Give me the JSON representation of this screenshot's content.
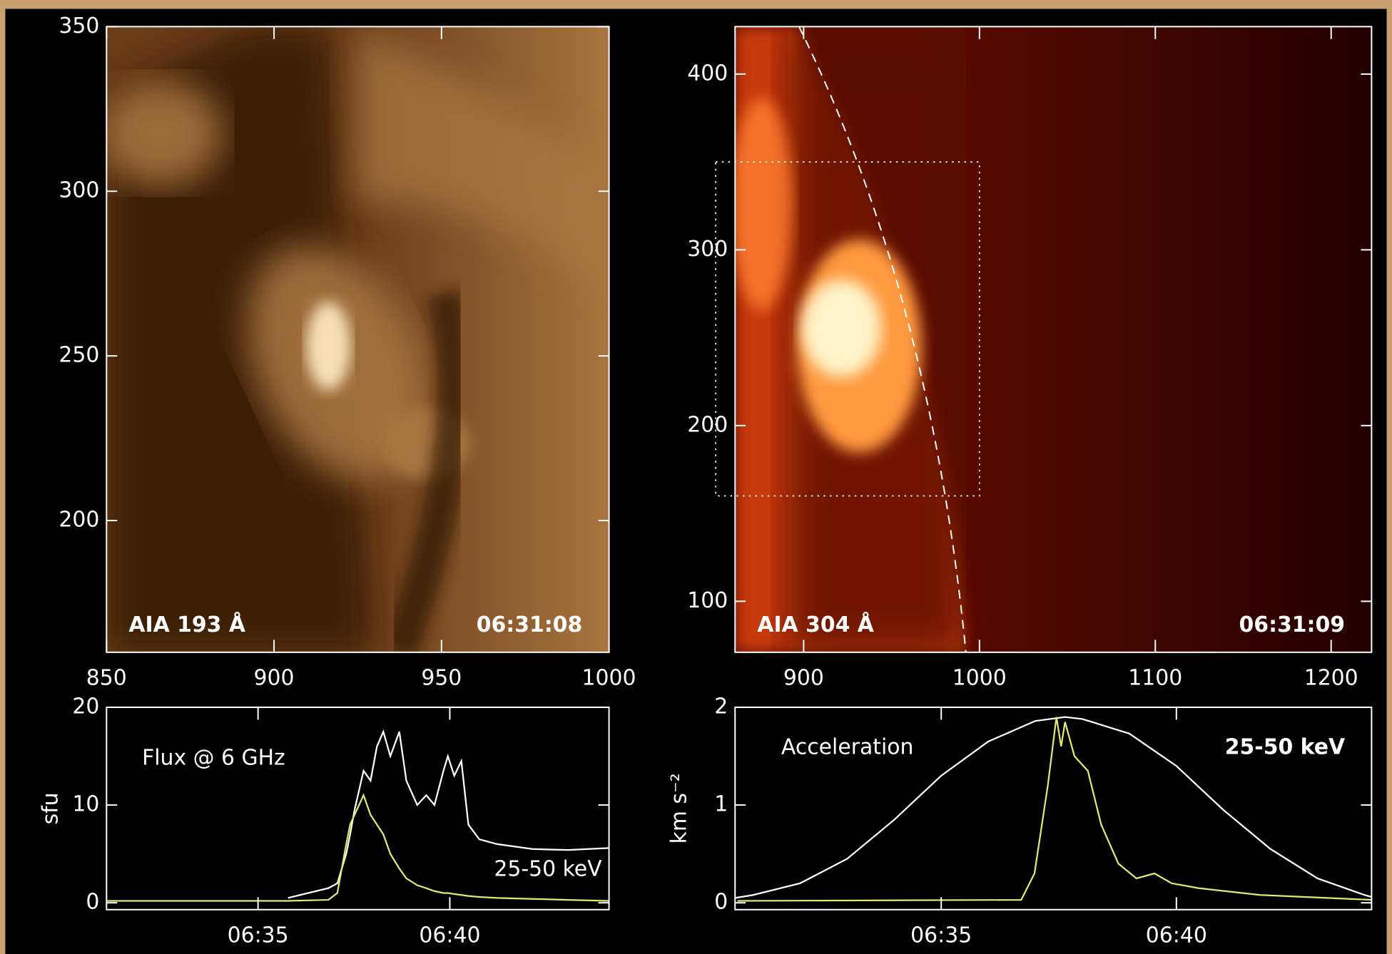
{
  "chart_data": [
    {
      "type": "image",
      "title": "AIA 193 Å",
      "time": "06:31:08",
      "colormap": [
        "#2e1606",
        "#6a3c18",
        "#a8743f",
        "#f6e0b8"
      ],
      "xlim": [
        850,
        1000
      ],
      "xticks": [
        850,
        900,
        950,
        1000
      ],
      "ylim": [
        160,
        350
      ],
      "yticks": [
        200,
        250,
        300,
        350
      ]
    },
    {
      "type": "image",
      "title": "AIA 304 Å",
      "time": "06:31:09",
      "colormap": [
        "#240000",
        "#5c0c02",
        "#d2400e",
        "#fff2c8"
      ],
      "xlim": [
        861,
        1223
      ],
      "xticks": [
        900,
        1000,
        1100,
        1200
      ],
      "ylim": [
        71,
        427
      ],
      "yticks": [
        100,
        200,
        300,
        400
      ]
    },
    {
      "type": "line",
      "ylabel": "sfu",
      "ylim": [
        -0.7,
        20
      ],
      "yticks": [
        0,
        10,
        20
      ],
      "xlim": [
        "06:31:03",
        "06:44:09"
      ],
      "xticks": [
        "06:35",
        "06:40"
      ],
      "series": [
        {
          "name": "Flux @ 6 GHz",
          "color": "#ffffff",
          "x": [
            "06:31:03",
            "06:35:47",
            "06:36:50",
            "06:37:04",
            "06:37:18",
            "06:37:24",
            "06:37:31",
            "06:37:45",
            "06:37:56",
            "06:38:06",
            "06:38:16",
            "06:38:27",
            "06:38:41",
            "06:38:52",
            "06:39:09",
            "06:39:23",
            "06:39:36",
            "06:39:50",
            "06:39:57",
            "06:40:07",
            "06:40:18",
            "06:40:29",
            "06:40:46",
            "06:41:14",
            "06:42:09",
            "06:43:05",
            "06:44:09"
          ],
          "values": [
            null,
            0.5,
            1.5,
            2,
            5,
            7,
            9.5,
            13.5,
            12.5,
            16,
            17.5,
            15,
            17.5,
            12.5,
            10,
            11,
            10,
            13.5,
            15,
            13,
            14.5,
            8,
            6.5,
            6,
            5.5,
            5.4,
            5.6
          ]
        },
        {
          "name": "25-50 keV",
          "color": "#e0ea70",
          "x": [
            "06:31:03",
            "06:35:47",
            "06:36:50",
            "06:37:04",
            "06:37:18",
            "06:37:24",
            "06:37:31",
            "06:37:45",
            "06:37:56",
            "06:38:06",
            "06:38:16",
            "06:38:27",
            "06:38:41",
            "06:38:52",
            "06:39:09",
            "06:39:23",
            "06:39:36",
            "06:39:50",
            "06:39:57",
            "06:40:07",
            "06:40:18",
            "06:40:29",
            "06:40:46",
            "06:41:14",
            "06:42:09",
            "06:43:05",
            "06:44:09"
          ],
          "values": [
            0.2,
            0.2,
            0.3,
            1,
            6,
            8,
            9,
            11,
            9,
            8,
            7,
            5,
            3.5,
            2.5,
            1.8,
            1.5,
            1.2,
            1,
            1,
            0.9,
            0.8,
            0.7,
            0.6,
            0.5,
            0.4,
            0.3,
            0.2
          ]
        }
      ]
    },
    {
      "type": "line",
      "ylabel": "km s⁻²",
      "ylim": [
        -0.07,
        2
      ],
      "yticks": [
        0,
        1,
        2
      ],
      "xlim": [
        "06:30:37",
        "06:44:09"
      ],
      "xticks": [
        "06:35",
        "06:40"
      ],
      "series": [
        {
          "name": "Acceleration",
          "color": "#ffffff",
          "x": [
            "06:30:37",
            "06:31:00",
            "06:32:00",
            "06:33:00",
            "06:34:00",
            "06:35:00",
            "06:36:00",
            "06:37:00",
            "06:37:38",
            "06:38:00",
            "06:39:00",
            "06:40:00",
            "06:41:00",
            "06:42:00",
            "06:43:00",
            "06:44:00",
            "06:44:09"
          ],
          "values": [
            0.05,
            0.08,
            0.2,
            0.45,
            0.85,
            1.3,
            1.65,
            1.86,
            1.9,
            1.88,
            1.73,
            1.4,
            0.95,
            0.55,
            0.25,
            0.08,
            0.06
          ]
        },
        {
          "name": "25-50 keV",
          "color": "#e0ea70",
          "x": [
            "06:30:40",
            "06:36:42",
            "06:36:59",
            "06:37:16",
            "06:37:27",
            "06:37:33",
            "06:37:38",
            "06:37:50",
            "06:38:07",
            "06:38:24",
            "06:38:46",
            "06:39:09",
            "06:39:32",
            "06:39:54",
            "06:40:28",
            "06:41:47",
            "06:44:09"
          ],
          "values": [
            0.02,
            0.03,
            0.3,
            1.2,
            1.9,
            1.6,
            1.85,
            1.5,
            1.35,
            0.8,
            0.4,
            0.25,
            0.3,
            0.2,
            0.15,
            0.08,
            0.03
          ]
        }
      ]
    }
  ]
}
